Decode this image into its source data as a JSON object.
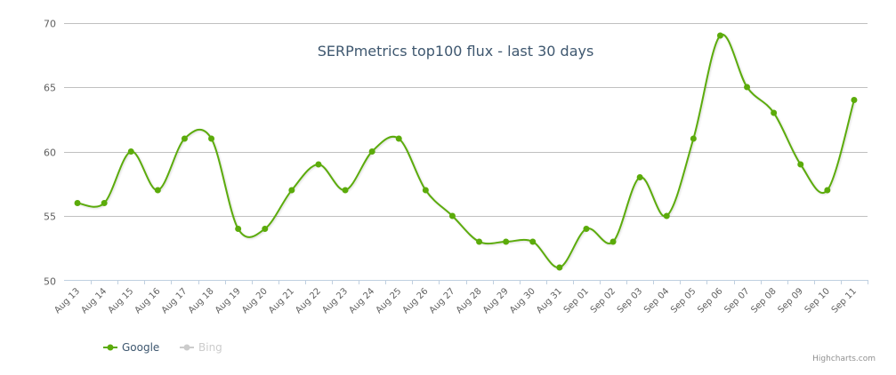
{
  "chart_data": {
    "type": "line",
    "title": "SERPmetrics top100 flux - last 30 days",
    "xlabel": "",
    "ylabel": "",
    "ylim": [
      50,
      70
    ],
    "yticks": [
      50,
      55,
      60,
      65,
      70
    ],
    "grid": true,
    "legend_position": "bottom-left",
    "categories": [
      "Aug 13",
      "Aug 14",
      "Aug 15",
      "Aug 16",
      "Aug 17",
      "Aug 18",
      "Aug 19",
      "Aug 20",
      "Aug 21",
      "Aug 22",
      "Aug 23",
      "Aug 24",
      "Aug 25",
      "Aug 26",
      "Aug 27",
      "Aug 28",
      "Aug 29",
      "Aug 30",
      "Aug 31",
      "Sep 01",
      "Sep 02",
      "Sep 03",
      "Sep 04",
      "Sep 05",
      "Sep 06",
      "Sep 07",
      "Sep 08",
      "Sep 09",
      "Sep 10",
      "Sep 11"
    ],
    "series": [
      {
        "name": "Google",
        "color": "#5bab0a",
        "visible": true,
        "values": [
          56,
          56,
          60,
          57,
          61,
          61,
          54,
          54,
          57,
          59,
          57,
          60,
          61,
          57,
          55,
          53,
          53,
          53,
          51,
          54,
          53,
          58,
          55,
          61,
          69,
          65,
          63,
          59,
          57,
          64
        ]
      },
      {
        "name": "Bing",
        "color": "#cccccc",
        "visible": false,
        "values": []
      }
    ]
  },
  "legend": {
    "items": [
      {
        "label": "Google",
        "color": "#5bab0a",
        "text_color": "#3e576f",
        "active": true
      },
      {
        "label": "Bing",
        "color": "#cccccc",
        "text_color": "#cccccc",
        "active": false
      }
    ]
  },
  "credits": "Highcharts.com",
  "colors": {
    "grid": "#c0c0c0",
    "axis": "#c0d0e0",
    "title": "#3e576f"
  }
}
